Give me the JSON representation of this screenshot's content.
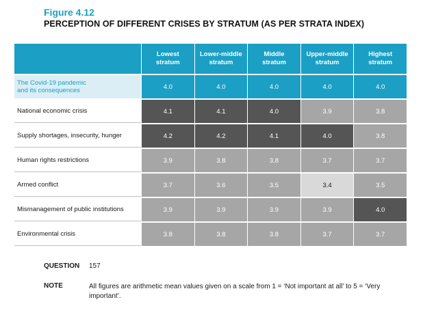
{
  "figure": {
    "label": "Figure 4.12",
    "title": "PERCEPTION OF DIFFERENT CRISES BY STRATUM (AS PER STRATA INDEX)"
  },
  "chart_data": {
    "type": "heatmap",
    "title": "PERCEPTION OF DIFFERENT CRISES BY STRATUM (AS PER STRATA INDEX)",
    "columns": [
      "Lowest stratum",
      "Lower-middle stratum",
      "Middle stratum",
      "Upper-middle stratum",
      "Highest stratum"
    ],
    "columns_display": [
      [
        "Lowest",
        "stratum"
      ],
      [
        "Lower-middle",
        "stratum"
      ],
      [
        "Middle",
        "stratum"
      ],
      [
        "Upper-middle",
        "stratum"
      ],
      [
        "Highest",
        "stratum"
      ]
    ],
    "rows": [
      {
        "label": "The Covid-19 pandemic and its consequences",
        "label_lines": [
          "The Covid-19 pandemic",
          "and its consequences"
        ],
        "values": [
          4.0,
          4.0,
          4.0,
          4.0,
          4.0
        ],
        "shades": [
          "first",
          "first",
          "first",
          "first",
          "first"
        ]
      },
      {
        "label": "National economic crisis",
        "values": [
          4.1,
          4.1,
          4.0,
          3.9,
          3.8
        ],
        "shades": [
          "hi",
          "hi",
          "hi",
          "mid",
          "mid"
        ]
      },
      {
        "label": "Supply shortages, insecurity, hunger",
        "values": [
          4.2,
          4.2,
          4.1,
          4.0,
          3.8
        ],
        "shades": [
          "hi",
          "hi",
          "hi",
          "hi",
          "mid"
        ]
      },
      {
        "label": "Human rights restrictions",
        "values": [
          3.9,
          3.8,
          3.8,
          3.7,
          3.7
        ],
        "shades": [
          "mid",
          "mid",
          "mid",
          "mid",
          "mid"
        ]
      },
      {
        "label": "Armed conflict",
        "values": [
          3.7,
          3.6,
          3.5,
          3.4,
          3.5
        ],
        "shades": [
          "mid",
          "mid",
          "mid",
          "lo",
          "mid"
        ]
      },
      {
        "label": "Mismanagement of public institutions",
        "values": [
          3.9,
          3.9,
          3.9,
          3.9,
          4.0
        ],
        "shades": [
          "mid",
          "mid",
          "mid",
          "mid",
          "hi"
        ]
      },
      {
        "label": "Environmental crisis",
        "values": [
          3.8,
          3.8,
          3.8,
          3.7,
          3.7
        ],
        "shades": [
          "mid",
          "mid",
          "mid",
          "mid",
          "mid"
        ]
      }
    ],
    "value_format": "0.0"
  },
  "footer": {
    "question_label": "QUESTION",
    "question_value": "157",
    "note_label": "NOTE",
    "note_value": "All figures are arithmetic mean values given on a scale from 1 = ‘Not important at all’ to 5 = ‘Very important’."
  },
  "colors": {
    "accent": "#1b9fc4",
    "high": "#555555",
    "mid": "#a6a6a6",
    "low": "#d9d9d9"
  }
}
